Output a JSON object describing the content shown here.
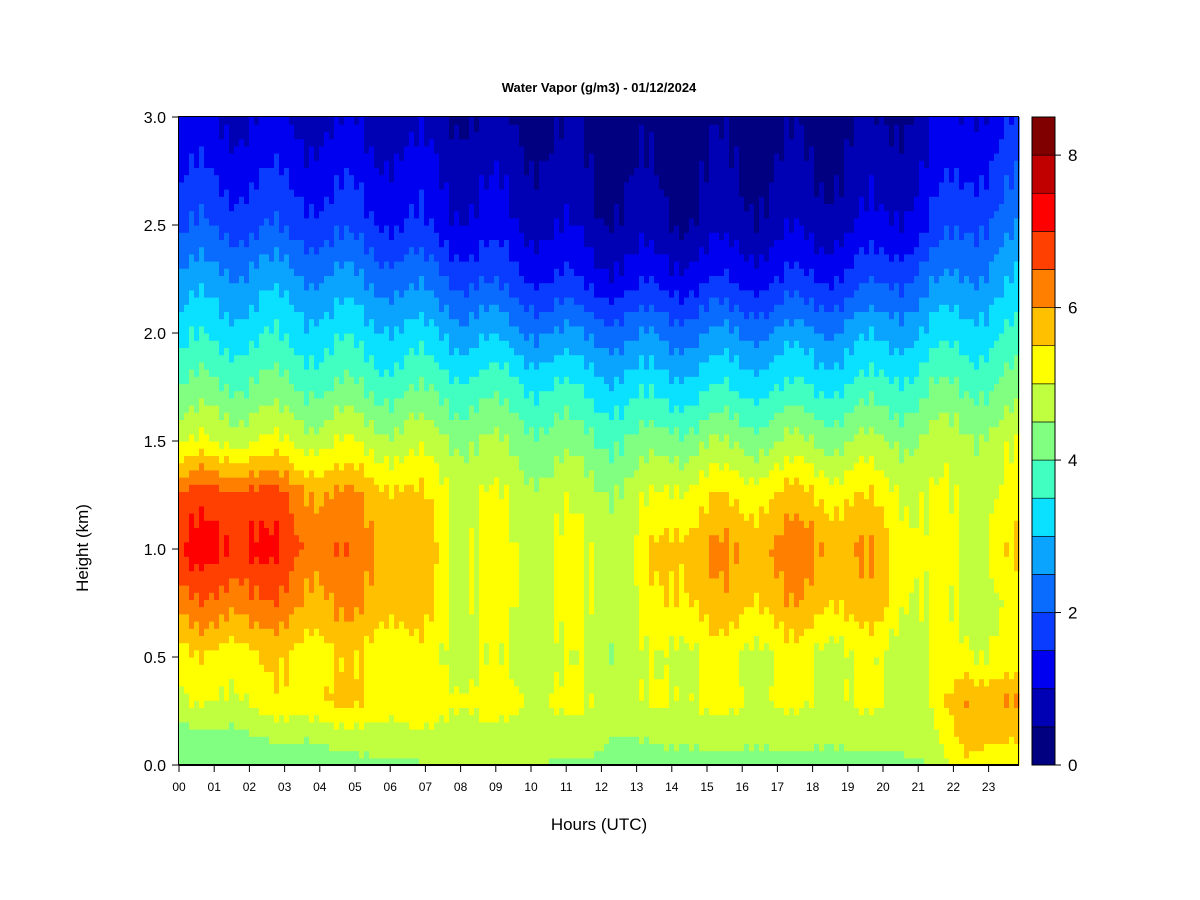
{
  "chart_data": {
    "type": "heatmap",
    "title": "Water Vapor (g/m3) - 01/12/2024",
    "xlabel": "Hours (UTC)",
    "ylabel": "Height (km)",
    "x_range": [
      0,
      24
    ],
    "y_range": [
      0.0,
      3.0
    ],
    "x_ticks": [
      "00",
      "01",
      "02",
      "03",
      "04",
      "05",
      "06",
      "07",
      "08",
      "09",
      "10",
      "11",
      "12",
      "13",
      "14",
      "15",
      "16",
      "17",
      "18",
      "19",
      "20",
      "21",
      "22",
      "23"
    ],
    "y_ticks": [
      "0.0",
      "0.5",
      "1.0",
      "1.5",
      "2.0",
      "2.5",
      "3.0"
    ],
    "colorbar": {
      "range": [
        0,
        8.5
      ],
      "step": 0.5,
      "ticks": [
        "0",
        "2",
        "4",
        "6",
        "8"
      ],
      "colors": [
        "#000080",
        "#0000b5",
        "#0000f0",
        "#0a3cff",
        "#0a6cff",
        "#0aa4ff",
        "#0ae0ff",
        "#40ffc0",
        "#80ff80",
        "#c0ff40",
        "#ffff00",
        "#ffc000",
        "#ff8000",
        "#ff4000",
        "#ff0000",
        "#c00000",
        "#800000"
      ]
    },
    "profiles": {
      "heights_km": [
        0.0,
        0.15,
        0.3,
        0.5,
        0.75,
        1.0,
        1.25,
        1.5,
        1.75,
        2.0,
        2.25,
        2.5,
        2.75,
        3.0
      ],
      "hours": [
        0,
        2,
        4,
        6,
        8,
        10,
        12,
        13,
        14,
        16,
        18,
        20,
        21.5,
        22.5,
        24
      ],
      "values": [
        [
          4.0,
          4.3,
          4.9,
          5.2,
          6.2,
          7.0,
          6.6,
          4.9,
          4.0,
          3.3,
          2.6,
          1.9,
          1.4,
          1.0
        ],
        [
          4.1,
          4.5,
          5.1,
          5.4,
          6.4,
          7.2,
          6.8,
          5.0,
          4.1,
          3.4,
          2.7,
          1.9,
          1.4,
          1.0
        ],
        [
          4.2,
          4.7,
          5.6,
          5.4,
          6.0,
          6.4,
          6.1,
          4.9,
          4.0,
          3.3,
          2.6,
          1.8,
          1.3,
          0.9
        ],
        [
          4.4,
          4.9,
          5.4,
          5.3,
          5.9,
          6.1,
          5.8,
          4.8,
          3.9,
          3.2,
          2.4,
          1.6,
          1.2,
          0.8
        ],
        [
          4.5,
          4.8,
          5.2,
          4.9,
          5.1,
          5.1,
          5.0,
          4.6,
          3.8,
          2.9,
          2.0,
          1.2,
          0.9,
          0.6
        ],
        [
          4.5,
          4.8,
          5.1,
          4.8,
          5.0,
          5.0,
          4.8,
          4.3,
          3.6,
          2.6,
          1.6,
          1.0,
          0.7,
          0.4
        ],
        [
          4.4,
          4.7,
          5.0,
          4.8,
          5.0,
          5.0,
          4.7,
          4.1,
          3.3,
          2.4,
          1.3,
          0.7,
          0.5,
          0.3
        ],
        [
          4.0,
          4.5,
          4.8,
          4.6,
          4.8,
          4.9,
          4.6,
          4.0,
          3.2,
          2.3,
          1.2,
          0.6,
          0.4,
          0.2
        ],
        [
          4.3,
          4.7,
          5.1,
          5.0,
          5.6,
          5.8,
          5.2,
          4.3,
          3.3,
          2.4,
          1.3,
          0.6,
          0.4,
          0.2
        ],
        [
          4.3,
          4.7,
          5.1,
          5.0,
          5.7,
          6.0,
          5.4,
          4.4,
          3.4,
          2.5,
          1.4,
          0.7,
          0.5,
          0.3
        ],
        [
          4.3,
          4.7,
          5.0,
          5.0,
          5.8,
          6.2,
          5.6,
          4.5,
          3.5,
          2.6,
          1.5,
          0.8,
          0.5,
          0.3
        ],
        [
          4.3,
          4.7,
          5.0,
          4.9,
          5.6,
          5.8,
          5.3,
          4.5,
          3.6,
          2.8,
          1.8,
          1.0,
          0.7,
          0.4
        ],
        [
          4.5,
          4.8,
          4.9,
          4.8,
          4.9,
          5.0,
          4.9,
          4.6,
          3.9,
          3.1,
          2.3,
          1.5,
          1.1,
          0.8
        ],
        [
          5.4,
          5.8,
          6.1,
          5.2,
          4.9,
          5.0,
          4.9,
          4.7,
          4.0,
          3.3,
          2.6,
          2.0,
          1.5,
          1.1
        ],
        [
          5.2,
          5.5,
          5.9,
          5.0,
          5.0,
          5.4,
          5.1,
          4.8,
          4.1,
          3.5,
          2.9,
          2.3,
          1.8,
          1.4
        ]
      ]
    }
  }
}
